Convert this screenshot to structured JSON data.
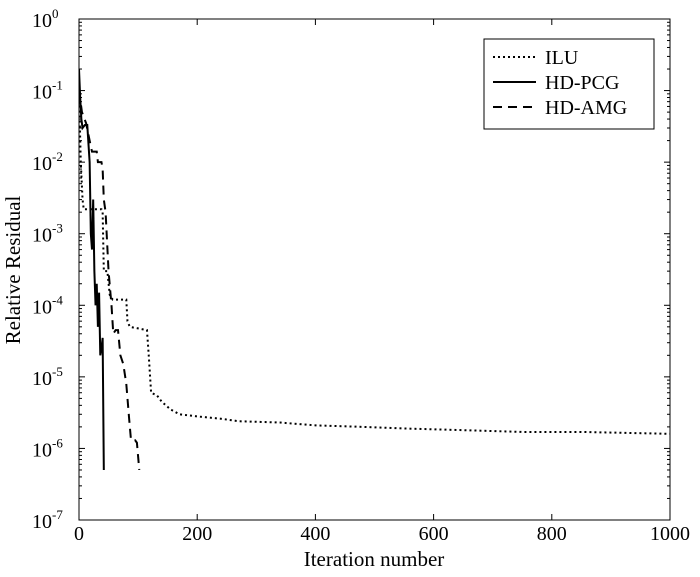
{
  "chart_data": {
    "type": "line",
    "title": "",
    "xlabel": "Iteration number",
    "ylabel": "Relative Residual",
    "xlim": [
      0,
      1000
    ],
    "ylim": [
      1e-07,
      1
    ],
    "yscale": "log",
    "grid": false,
    "legend_position": "top-right",
    "x_ticks": [
      0,
      200,
      400,
      600,
      800,
      1000
    ],
    "x_tick_labels": [
      "0",
      "200",
      "400",
      "600",
      "800",
      "1000"
    ],
    "y_ticks": [
      {
        "value": 1,
        "base": "10",
        "exp": "0"
      },
      {
        "value": 0.1,
        "base": "10",
        "exp": "-1"
      },
      {
        "value": 0.01,
        "base": "10",
        "exp": "-2"
      },
      {
        "value": 0.001,
        "base": "10",
        "exp": "-3"
      },
      {
        "value": 0.0001,
        "base": "10",
        "exp": "-4"
      },
      {
        "value": 1e-05,
        "base": "10",
        "exp": "-5"
      },
      {
        "value": 1e-06,
        "base": "10",
        "exp": "-6"
      },
      {
        "value": 1e-07,
        "base": "10",
        "exp": "-7"
      }
    ],
    "series": [
      {
        "name": "ILU",
        "style": "dotted",
        "color": "#000000",
        "points": [
          [
            0,
            0.1
          ],
          [
            3,
            0.01
          ],
          [
            6,
            0.003
          ],
          [
            8,
            0.0022
          ],
          [
            20,
            0.0022
          ],
          [
            38,
            0.0022
          ],
          [
            40,
            0.002
          ],
          [
            42,
            0.0003
          ],
          [
            48,
            0.0003
          ],
          [
            52,
            0.00014
          ],
          [
            57,
            0.00012
          ],
          [
            80,
            0.00012
          ],
          [
            82,
            6e-05
          ],
          [
            86,
            5e-05
          ],
          [
            115,
            4.5e-05
          ],
          [
            118,
            2e-05
          ],
          [
            122,
            6e-06
          ],
          [
            132,
            5.5e-06
          ],
          [
            140,
            4.5e-06
          ],
          [
            155,
            3.5e-06
          ],
          [
            170,
            3e-06
          ],
          [
            200,
            2.8e-06
          ],
          [
            240,
            2.6e-06
          ],
          [
            270,
            2.4e-06
          ],
          [
            340,
            2.3e-06
          ],
          [
            400,
            2.1e-06
          ],
          [
            480,
            2e-06
          ],
          [
            550,
            1.9e-06
          ],
          [
            650,
            1.8e-06
          ],
          [
            750,
            1.7e-06
          ],
          [
            850,
            1.7e-06
          ],
          [
            1000,
            1.6e-06
          ]
        ]
      },
      {
        "name": "HD-PCG",
        "style": "solid",
        "color": "#000000",
        "points": [
          [
            0,
            0.2
          ],
          [
            2,
            0.08
          ],
          [
            4,
            0.04
          ],
          [
            6,
            0.03
          ],
          [
            10,
            0.033
          ],
          [
            14,
            0.033
          ],
          [
            18,
            0.01
          ],
          [
            20,
            0.001
          ],
          [
            22,
            0.0006
          ],
          [
            24,
            0.003
          ],
          [
            26,
            0.0003
          ],
          [
            28,
            0.0001
          ],
          [
            30,
            0.0002
          ],
          [
            32,
            5e-05
          ],
          [
            34,
            0.00015
          ],
          [
            36,
            2e-05
          ],
          [
            38,
            2.5e-05
          ],
          [
            40,
            3.5e-05
          ],
          [
            42,
            5e-07
          ]
        ]
      },
      {
        "name": "HD-AMG",
        "style": "dashed",
        "color": "#000000",
        "points": [
          [
            0,
            0.1
          ],
          [
            5,
            0.05
          ],
          [
            12,
            0.035
          ],
          [
            18,
            0.02
          ],
          [
            22,
            0.014
          ],
          [
            30,
            0.014
          ],
          [
            32,
            0.01
          ],
          [
            38,
            0.01
          ],
          [
            40,
            0.008
          ],
          [
            42,
            0.003
          ],
          [
            45,
            0.002
          ],
          [
            50,
            0.0003
          ],
          [
            55,
            0.0001
          ],
          [
            58,
            4e-05
          ],
          [
            62,
            4.5e-05
          ],
          [
            66,
            4.5e-05
          ],
          [
            70,
            2e-05
          ],
          [
            75,
            1.5e-05
          ],
          [
            80,
            8e-06
          ],
          [
            85,
            2.5e-06
          ],
          [
            88,
            1.3e-06
          ],
          [
            95,
            1.3e-06
          ],
          [
            98,
            1.2e-06
          ],
          [
            102,
            5e-07
          ]
        ]
      }
    ]
  }
}
